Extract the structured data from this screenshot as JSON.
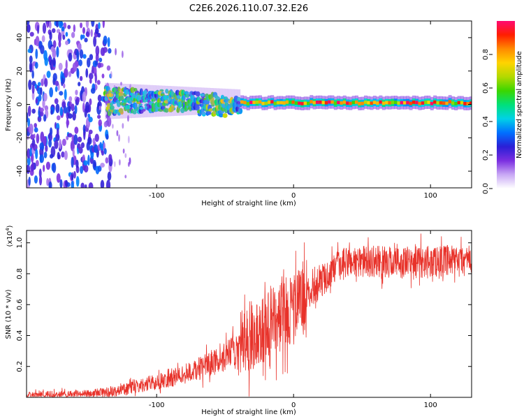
{
  "figure_title": "C2E6.2026.110.07.32.E26",
  "chart_data": [
    {
      "type": "heatmap",
      "name": "spectrogram",
      "title": "C2E6.2026.110.07.32.E26",
      "xlabel": "Height of straight line (km)",
      "ylabel": "Frequency (Hz)",
      "xlim": [
        -195,
        130
      ],
      "ylim": [
        -50,
        50
      ],
      "xticks": [
        -100,
        0,
        100
      ],
      "yticks": [
        -40,
        -20,
        0,
        20,
        40
      ],
      "colorbar": {
        "label": "Normalized spectral amplitude",
        "range": [
          0,
          1
        ],
        "ticks": [
          "0.0",
          "0.2",
          "0.4",
          "0.6",
          "0.8"
        ],
        "colors": [
          "#ffffff",
          "#c9a8f5",
          "#7b2fe0",
          "#2a1fd6",
          "#0070ff",
          "#00d2e6",
          "#00e07a",
          "#3bd600",
          "#b3d900",
          "#ffd400",
          "#ff8a00",
          "#ff1e00",
          "#ff0a72"
        ]
      },
      "regions": [
        {
          "x_range": [
            -195,
            -135
          ],
          "freq_spread": 50,
          "description_amplitude": 0.25
        },
        {
          "x_range": [
            -140,
            -20
          ],
          "freq_center": 2,
          "freq_spread": 8,
          "amplitude_range": [
            0.3,
            0.8
          ]
        },
        {
          "x_range": [
            -40,
            130
          ],
          "freq_center": 1,
          "freq_spread": 2,
          "amplitude_range": [
            0.5,
            1.0
          ]
        }
      ]
    },
    {
      "type": "line",
      "name": "snr",
      "xlabel": "Height of straight line (km)",
      "ylabel": "SNR (10 * v/v)",
      "multiplier_label": "(x10",
      "multiplier_exp": "4",
      "xlim": [
        -195,
        130
      ],
      "ylim": [
        0,
        1.08
      ],
      "xticks": [
        -100,
        0,
        100
      ],
      "yticks": [
        0.2,
        0.4,
        0.6,
        0.8,
        1.0
      ],
      "ytick_labels": [
        "0.2",
        "0.4",
        "0.6",
        "0.8",
        "1.0"
      ],
      "color": "#e8322a",
      "trend": {
        "x": [
          -195,
          -150,
          -130,
          -110,
          -90,
          -70,
          -50,
          -40,
          -30,
          -20,
          -10,
          0,
          10,
          20,
          30,
          40,
          60,
          80,
          100,
          120,
          130
        ],
        "y": [
          0.01,
          0.02,
          0.04,
          0.08,
          0.12,
          0.18,
          0.26,
          0.33,
          0.4,
          0.45,
          0.52,
          0.58,
          0.67,
          0.75,
          0.83,
          0.88,
          0.88,
          0.87,
          0.88,
          0.88,
          0.89
        ]
      },
      "noise_amplitude": 0.08
    }
  ]
}
